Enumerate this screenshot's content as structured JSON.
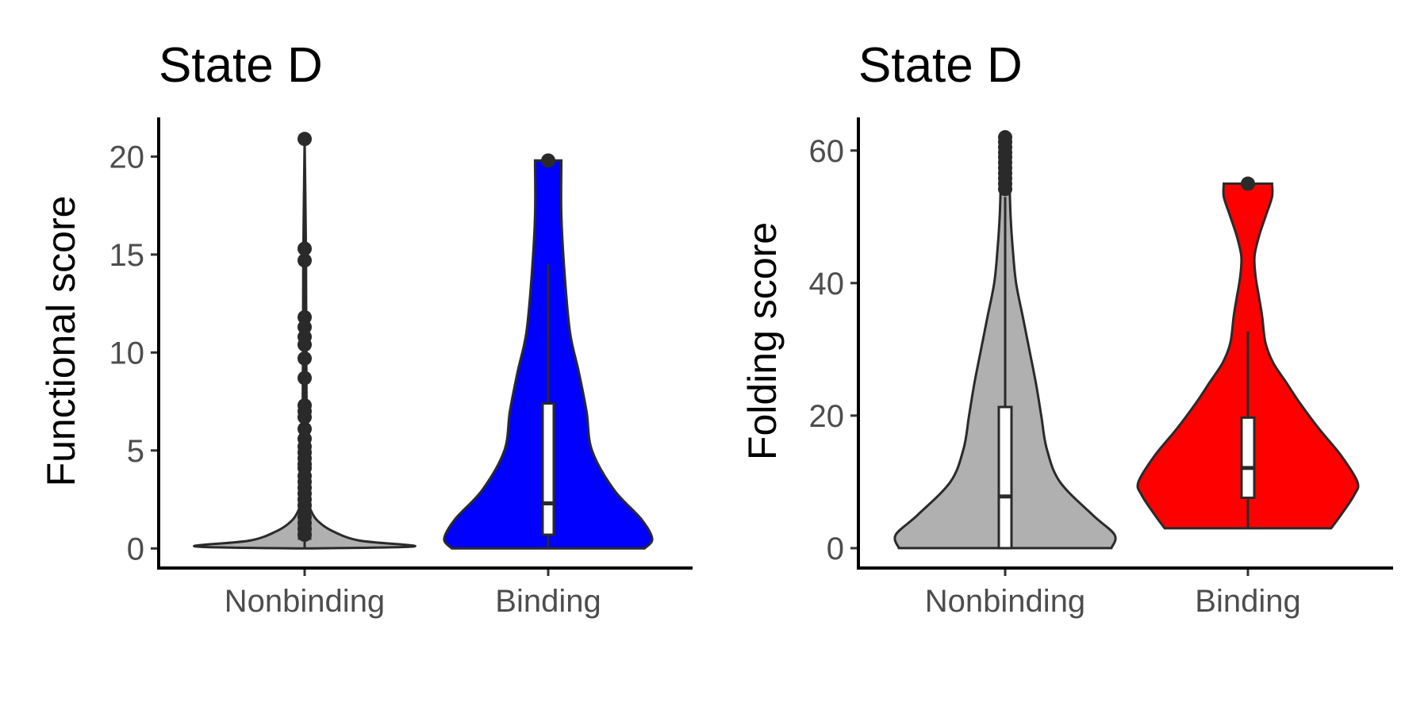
{
  "chart_data": [
    {
      "type": "violin",
      "title": "State D",
      "xlabel": "",
      "ylabel": "Functional score",
      "ylim": [
        -1,
        22
      ],
      "yticks": [
        0,
        5,
        10,
        15,
        20
      ],
      "categories": [
        "Nonbinding",
        "Binding"
      ],
      "grid": false,
      "legend": "none",
      "series": [
        {
          "category": "Nonbinding",
          "color": "#b0b0b0",
          "density": [
            [
              0.0,
              0.0
            ],
            [
              0.1,
              1.0
            ],
            [
              0.4,
              0.5
            ],
            [
              0.9,
              0.25
            ],
            [
              1.4,
              0.12
            ],
            [
              1.9,
              0.06
            ],
            [
              2.4,
              0.035
            ],
            [
              3.0,
              0.025
            ],
            [
              5.0,
              0.02
            ],
            [
              10.0,
              0.015
            ],
            [
              15.0,
              0.012
            ],
            [
              20.9,
              0.0
            ]
          ],
          "box": {
            "q1": 0.5,
            "median": 0.8,
            "q3": 1.2,
            "whisker_low": 0.0,
            "whisker_high": 20.9
          },
          "outliers": [
            20.9,
            15.3,
            14.7,
            11.8,
            11.3,
            10.8,
            10.4,
            9.7,
            8.7,
            7.3,
            7.0,
            6.7,
            6.1,
            5.6,
            5.2,
            4.9,
            4.6,
            4.3,
            4.1,
            3.7,
            3.4,
            3.1,
            2.8,
            2.5,
            2.2,
            1.9,
            1.6,
            1.3,
            1.0,
            0.7
          ]
        },
        {
          "category": "Binding",
          "color": "#0000ff",
          "density": [
            [
              0.0,
              0.88
            ],
            [
              0.5,
              0.95
            ],
            [
              1.5,
              0.85
            ],
            [
              3.0,
              0.6
            ],
            [
              5.0,
              0.4
            ],
            [
              7.0,
              0.35
            ],
            [
              9.0,
              0.28
            ],
            [
              11.0,
              0.2
            ],
            [
              14.0,
              0.15
            ],
            [
              17.0,
              0.12
            ],
            [
              19.8,
              0.12
            ]
          ],
          "box": {
            "q1": 0.7,
            "median": 2.3,
            "q3": 7.4,
            "whisker_low": 0.0,
            "whisker_high": 14.5
          },
          "outliers": [
            19.8
          ]
        }
      ]
    },
    {
      "type": "violin",
      "title": "State D",
      "xlabel": "",
      "ylabel": "Folding score",
      "ylim": [
        -3,
        65
      ],
      "yticks": [
        0,
        20,
        40,
        60
      ],
      "categories": [
        "Nonbinding",
        "Binding"
      ],
      "grid": false,
      "legend": "none",
      "series": [
        {
          "category": "Nonbinding",
          "color": "#b0b0b0",
          "density": [
            [
              0.0,
              0.97
            ],
            [
              2.0,
              1.0
            ],
            [
              5.0,
              0.8
            ],
            [
              10.0,
              0.5
            ],
            [
              15.0,
              0.38
            ],
            [
              20.0,
              0.33
            ],
            [
              25.0,
              0.28
            ],
            [
              30.0,
              0.22
            ],
            [
              35.0,
              0.16
            ],
            [
              40.0,
              0.1
            ],
            [
              45.0,
              0.07
            ],
            [
              50.0,
              0.05
            ],
            [
              55.0,
              0.04
            ],
            [
              60.0,
              0.03
            ],
            [
              62.0,
              0.0
            ]
          ],
          "box": {
            "q1": 0.0,
            "median": 7.8,
            "q3": 21.3,
            "whisker_low": 0.0,
            "whisker_high": 53.0
          },
          "outliers": [
            62.0,
            61.3,
            60.5,
            59.7,
            59.0,
            58.2,
            57.4,
            56.6,
            55.8,
            55.0,
            54.2
          ]
        },
        {
          "category": "Binding",
          "color": "#ff0000",
          "density": [
            [
              3.0,
              0.76
            ],
            [
              5.0,
              0.85
            ],
            [
              8.0,
              0.97
            ],
            [
              10.0,
              1.0
            ],
            [
              14.0,
              0.85
            ],
            [
              18.0,
              0.65
            ],
            [
              22.0,
              0.47
            ],
            [
              25.0,
              0.35
            ],
            [
              28.0,
              0.23
            ],
            [
              31.0,
              0.16
            ],
            [
              35.0,
              0.13
            ],
            [
              38.0,
              0.1
            ],
            [
              41.0,
              0.07
            ],
            [
              44.0,
              0.06
            ],
            [
              47.0,
              0.1
            ],
            [
              50.0,
              0.16
            ],
            [
              53.0,
              0.22
            ],
            [
              55.0,
              0.22
            ]
          ],
          "box": {
            "q1": 7.6,
            "median": 12.1,
            "q3": 19.7,
            "whisker_low": 3.0,
            "whisker_high": 32.7
          },
          "outliers": [
            55.0
          ]
        }
      ]
    }
  ]
}
